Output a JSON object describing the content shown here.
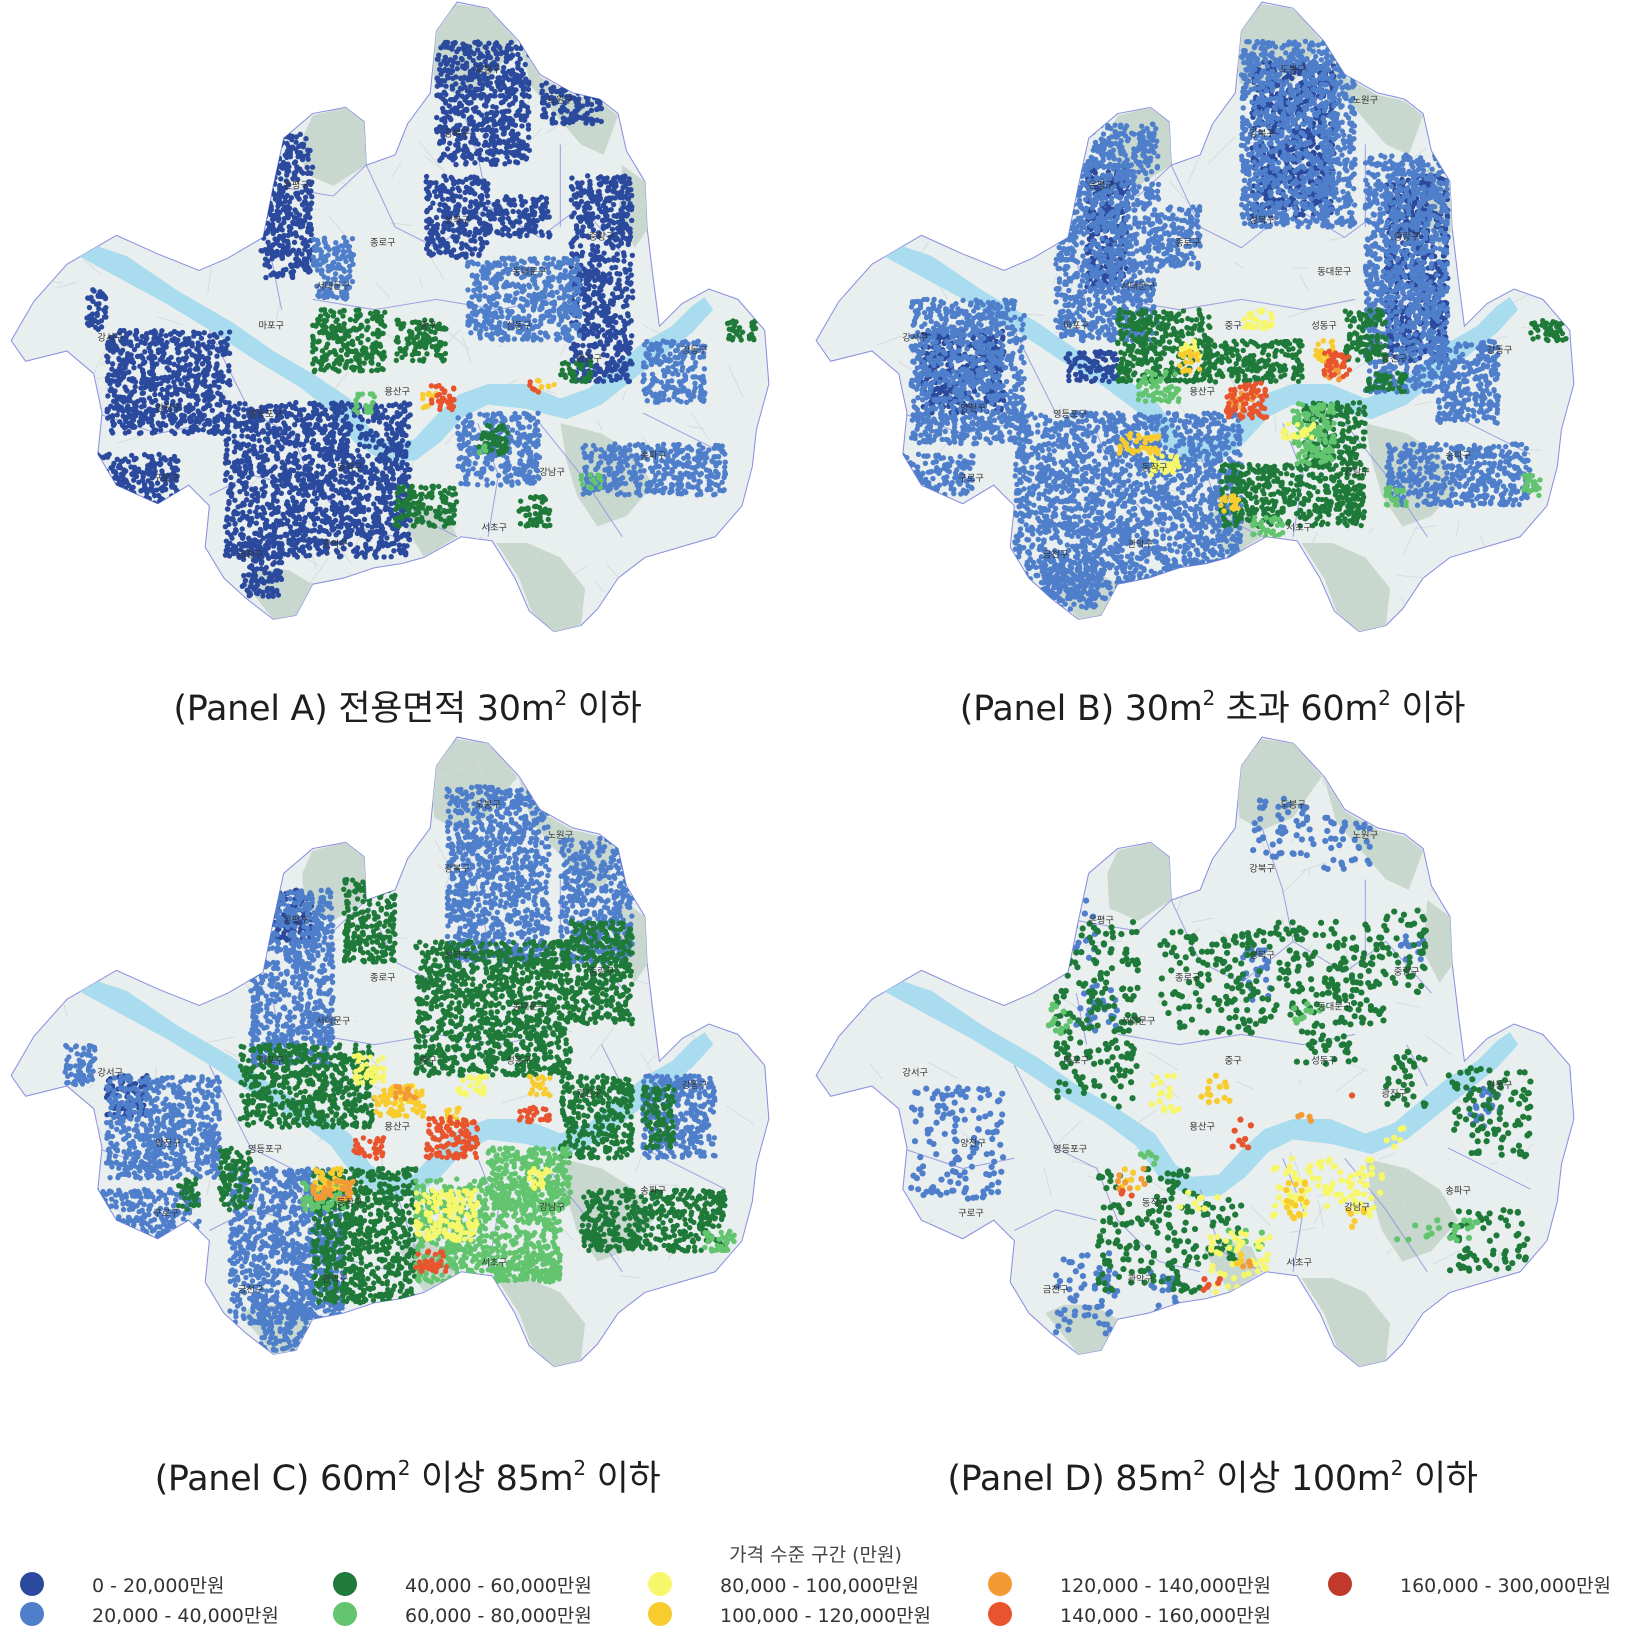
{
  "panels": [
    {
      "id": "A",
      "caption_pre": "(Panel A) 전용면적 30m",
      "caption_sup": "2",
      "caption_post": " 이하"
    },
    {
      "id": "B",
      "caption_pre": "(Panel B) 30m",
      "caption_sup": "2",
      "caption_mid": " 초과 60m",
      "caption_sup2": "2",
      "caption_post": " 이하"
    },
    {
      "id": "C",
      "caption_pre": "(Panel C) 60m",
      "caption_sup": "2",
      "caption_mid": " 이상 85m",
      "caption_sup2": "2",
      "caption_post": " 이하"
    },
    {
      "id": "D",
      "caption_pre": "(Panel D) 85m",
      "caption_sup": "2",
      "caption_mid": " 이상 100m",
      "caption_sup2": "2",
      "caption_post": " 이하"
    }
  ],
  "legend": {
    "title": "가격 수준 구간 (만원)",
    "items": [
      {
        "label": "0 - 20,000만원",
        "color": "#2b4a9e"
      },
      {
        "label": "20,000 - 40,000만원",
        "color": "#4f7fcb"
      },
      {
        "label": "40,000 - 60,000만원",
        "color": "#1f7a3a"
      },
      {
        "label": "60,000 - 80,000만원",
        "color": "#62c46e"
      },
      {
        "label": "80,000 - 100,000만원",
        "color": "#f6f76a"
      },
      {
        "label": "100,000 - 120,000만원",
        "color": "#f8cc2e"
      },
      {
        "label": "120,000 - 140,000만원",
        "color": "#f39a37"
      },
      {
        "label": "140,000 - 160,000만원",
        "color": "#e8542d"
      },
      {
        "label": "160,000 - 300,000만원",
        "color": "#c0392b"
      }
    ]
  },
  "map": {
    "base_color": "#e9eeee",
    "park_color": "#c9d8cf",
    "river_color": "#a9dcef",
    "boundary_color": "#8a8fe0",
    "district_labels": [
      "도봉구",
      "노원구",
      "강북구",
      "은평구",
      "성북구",
      "종로구",
      "중랑구",
      "동대문구",
      "서대문구",
      "마포구",
      "중구",
      "성동구",
      "광진구",
      "강동구",
      "용산구",
      "강서구",
      "양천구",
      "영등포구",
      "동작구",
      "구로구",
      "금천구",
      "관악구",
      "서초구",
      "강남구",
      "송파구"
    ]
  }
}
